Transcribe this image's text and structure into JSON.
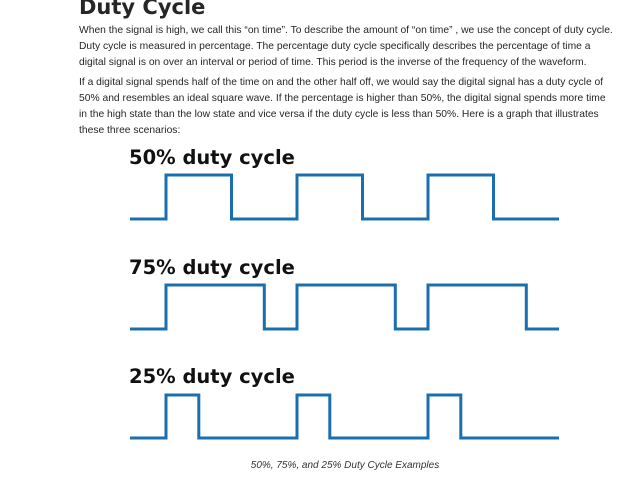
{
  "article": {
    "title": "Duty Cycle",
    "paragraphs": [
      "When the signal is high, we call this “on time”. To describe the amount of “on time” , we use the concept of duty cycle. Duty cycle is measured in percentage. The percentage duty cycle specifically describes the percentage of time a digital signal is on over an interval or period of time. This period is the inverse of the frequency of the waveform.",
      "If a digital signal spends half of the time on and the other half off, we would say the digital signal has a duty cycle of 50% and resembles an ideal square wave. If the percentage is higher than 50%, the digital signal spends more time in the high state than the low state and vice versa if the duty cycle is less than 50%. Here is a graph that illustrates these three scenarios:"
    ]
  },
  "figure": {
    "waveforms": [
      {
        "label": "50% duty cycle",
        "duty": 0.5
      },
      {
        "label": "75% duty cycle",
        "duty": 0.75
      },
      {
        "label": "25% duty cycle",
        "duty": 0.25
      }
    ],
    "pulse_count": 3,
    "line_color": "#1b6fae",
    "caption": "50%, 75%, and 25% Duty Cycle Examples"
  }
}
